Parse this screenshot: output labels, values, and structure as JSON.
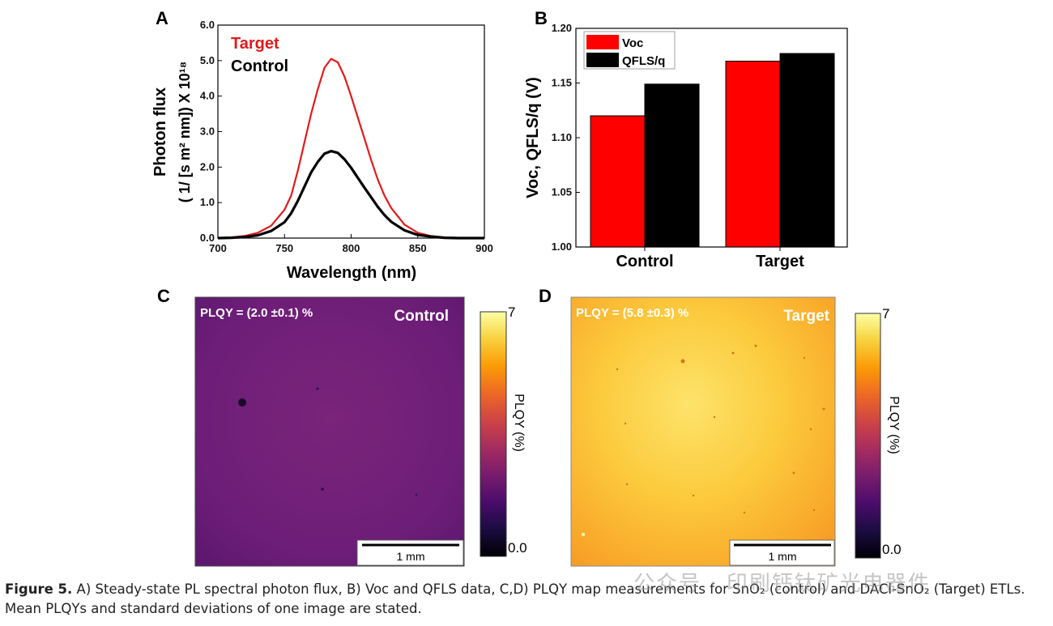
{
  "caption": {
    "label": "Figure 5.",
    "text": " A) Steady-state PL spectral photon flux, B) Voc and QFLS data, C,D) PLQY map measurements for SnO₂ (control) and DACl-SnO₂ (Target) ETLs. Mean PLQYs and standard deviations of one image are stated."
  },
  "watermark": "公众号 · 印刷钙钛矿光电器件",
  "panels": {
    "a": "A",
    "b": "B",
    "c": "C",
    "d": "D"
  },
  "chart_data": [
    {
      "panel": "A",
      "type": "line",
      "xlabel": "Wavelength (nm)",
      "ylabel_line1": "Photon flux",
      "ylabel_line2": "( 1/ [s m² nm]) X 10¹⁸",
      "xlim": [
        700,
        900
      ],
      "ylim": [
        0,
        6
      ],
      "xticks": [
        "700",
        "750",
        "800",
        "850",
        "900"
      ],
      "yticks": [
        "0.0",
        "1.0",
        "2.0",
        "3.0",
        "4.0",
        "5.0",
        "6.0"
      ],
      "legend_placement": "top-left",
      "series": [
        {
          "name": "Target",
          "color": "#e31a1c",
          "x": [
            700,
            710,
            720,
            730,
            740,
            750,
            755,
            760,
            765,
            770,
            775,
            780,
            785,
            790,
            795,
            800,
            805,
            810,
            815,
            820,
            825,
            830,
            840,
            850,
            860,
            870,
            880,
            890,
            900
          ],
          "y": [
            0.0,
            0.02,
            0.06,
            0.15,
            0.35,
            0.8,
            1.2,
            1.9,
            2.7,
            3.5,
            4.2,
            4.8,
            5.05,
            4.95,
            4.55,
            4.0,
            3.4,
            2.8,
            2.2,
            1.65,
            1.2,
            0.85,
            0.38,
            0.15,
            0.06,
            0.02,
            0.01,
            0.0,
            0.0
          ]
        },
        {
          "name": "Control",
          "color": "#000000",
          "x": [
            700,
            710,
            720,
            730,
            740,
            750,
            755,
            760,
            765,
            770,
            775,
            780,
            785,
            790,
            795,
            800,
            805,
            810,
            815,
            820,
            825,
            830,
            840,
            850,
            860,
            870,
            880,
            890,
            900
          ],
          "y": [
            0.0,
            0.01,
            0.03,
            0.08,
            0.2,
            0.45,
            0.7,
            1.05,
            1.45,
            1.85,
            2.15,
            2.38,
            2.45,
            2.4,
            2.22,
            1.98,
            1.7,
            1.42,
            1.15,
            0.88,
            0.65,
            0.46,
            0.22,
            0.09,
            0.04,
            0.01,
            0.0,
            0.0,
            0.0
          ]
        }
      ]
    },
    {
      "panel": "B",
      "type": "bar",
      "ylabel": "Voc, QFLS/q (V)",
      "categories": [
        "Control",
        "Target"
      ],
      "ylim": [
        1.0,
        1.2
      ],
      "yticks": [
        "1.00",
        "1.05",
        "1.10",
        "1.15",
        "1.20"
      ],
      "legend_placement": "top-left",
      "series": [
        {
          "name": "Voc",
          "color": "#ff0000",
          "values": [
            1.12,
            1.17
          ]
        },
        {
          "name": "QFLS/q",
          "color": "#000000",
          "values": [
            1.149,
            1.177
          ]
        }
      ]
    },
    {
      "panel": "C",
      "type": "heatmap",
      "annotation": "PLQY = (2.0 ±0.1)  %",
      "corner_label": "Control",
      "scale_bar": "1 mm",
      "colorbar_label": "PLQY (%)",
      "colorbar_range": [
        "0.0",
        "7"
      ],
      "mean_value": 2.0,
      "colormap": [
        "#000004",
        "#1b0c41",
        "#4a0c6b",
        "#781c6d",
        "#a52c60",
        "#cf4446",
        "#ed6925",
        "#fb9b06",
        "#f7d13d",
        "#fcffa4"
      ]
    },
    {
      "panel": "D",
      "type": "heatmap",
      "annotation": "PLQY = (5.8 ±0.3)  %",
      "corner_label": "Target",
      "scale_bar": "1 mm",
      "colorbar_label": "PLQY (%)",
      "colorbar_range": [
        "0.0",
        "7"
      ],
      "mean_value": 5.8,
      "colormap": [
        "#000004",
        "#1b0c41",
        "#4a0c6b",
        "#781c6d",
        "#a52c60",
        "#cf4446",
        "#ed6925",
        "#fb9b06",
        "#f7d13d",
        "#fcffa4"
      ]
    }
  ]
}
